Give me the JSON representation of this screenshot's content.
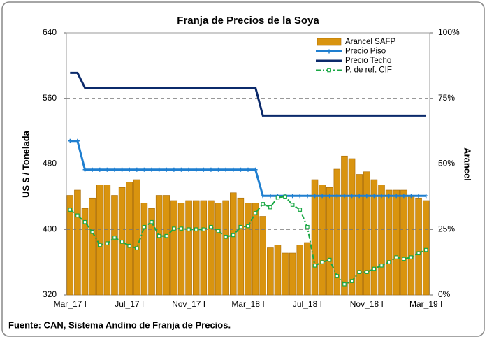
{
  "chart_data": {
    "type": "bar-line",
    "title": "Franja de Precios de la Soya",
    "y_label": "US $ / Tonelada",
    "y2_label": "Arancel",
    "source": "Fuente: CAN, Sistema Andino de Franja de Precios.",
    "categories": [
      "Mar_17 I",
      null,
      null,
      null,
      null,
      null,
      null,
      null,
      "Jul_17 I",
      null,
      null,
      null,
      null,
      null,
      null,
      null,
      "Nov_17 I",
      null,
      null,
      null,
      null,
      null,
      null,
      null,
      "Mar_18 I",
      null,
      null,
      null,
      null,
      null,
      null,
      null,
      "Jul_18 I",
      null,
      null,
      null,
      null,
      null,
      null,
      null,
      "Nov_18 I",
      null,
      null,
      null,
      null,
      null,
      null,
      null,
      "Mar_19 I"
    ],
    "ylim": [
      320,
      640
    ],
    "yticks": [
      320,
      400,
      480,
      560,
      640
    ],
    "y2lim": [
      0,
      100
    ],
    "y2ticks": [
      {
        "value": 0,
        "label": "0%"
      },
      {
        "value": 25,
        "label": "25%"
      },
      {
        "value": 50,
        "label": "50%"
      },
      {
        "value": 75,
        "label": "75%"
      },
      {
        "value": 100,
        "label": "100%"
      }
    ],
    "grid": true,
    "legend": "top-right",
    "series": [
      {
        "name": "Arancel SAFP",
        "type": "bar",
        "axis": "y2",
        "color": "#d9940f",
        "values": [
          38,
          40,
          33,
          37,
          42,
          42,
          38,
          41,
          43,
          44,
          35,
          33,
          38,
          38,
          36,
          35,
          36,
          36,
          36,
          36,
          35,
          36,
          39,
          37,
          35,
          35,
          30,
          18,
          19,
          16,
          16,
          19,
          20,
          44,
          42,
          41,
          48,
          53,
          52,
          46,
          47,
          44,
          42,
          40,
          40,
          40,
          38,
          37,
          36
        ]
      },
      {
        "name": "Precio Piso",
        "type": "line",
        "color": "#1f7fd0",
        "marker": "plus",
        "values": [
          508,
          508,
          473,
          473,
          473,
          473,
          473,
          473,
          473,
          473,
          473,
          473,
          473,
          473,
          473,
          473,
          473,
          473,
          473,
          473,
          473,
          473,
          473,
          473,
          473,
          473,
          441,
          441,
          441,
          441,
          441,
          441,
          441,
          441,
          441,
          441,
          441,
          441,
          441,
          441,
          441,
          441,
          441,
          441,
          441,
          441,
          441,
          441,
          441
        ]
      },
      {
        "name": "Precio Techo",
        "type": "line",
        "color": "#0b2a6b",
        "values": [
          591,
          591,
          573,
          573,
          573,
          573,
          573,
          573,
          573,
          573,
          573,
          573,
          573,
          573,
          573,
          573,
          573,
          573,
          573,
          573,
          573,
          573,
          573,
          573,
          573,
          573,
          539,
          539,
          539,
          539,
          539,
          539,
          539,
          539,
          539,
          539,
          539,
          539,
          539,
          539,
          539,
          539,
          539,
          539,
          539,
          539,
          539,
          539,
          539
        ]
      },
      {
        "name": "P. de ref. CIF",
        "type": "line",
        "color": "#1aa845",
        "marker": "square",
        "dash": true,
        "values": [
          424,
          417,
          409,
          397,
          381,
          383,
          390,
          385,
          380,
          377,
          403,
          409,
          392,
          392,
          401,
          401,
          400,
          400,
          400,
          403,
          398,
          391,
          393,
          403,
          404,
          420,
          431,
          427,
          439,
          440,
          430,
          424,
          403,
          356,
          360,
          363,
          343,
          333,
          337,
          348,
          348,
          352,
          356,
          360,
          366,
          364,
          366,
          371,
          375
        ]
      }
    ]
  }
}
